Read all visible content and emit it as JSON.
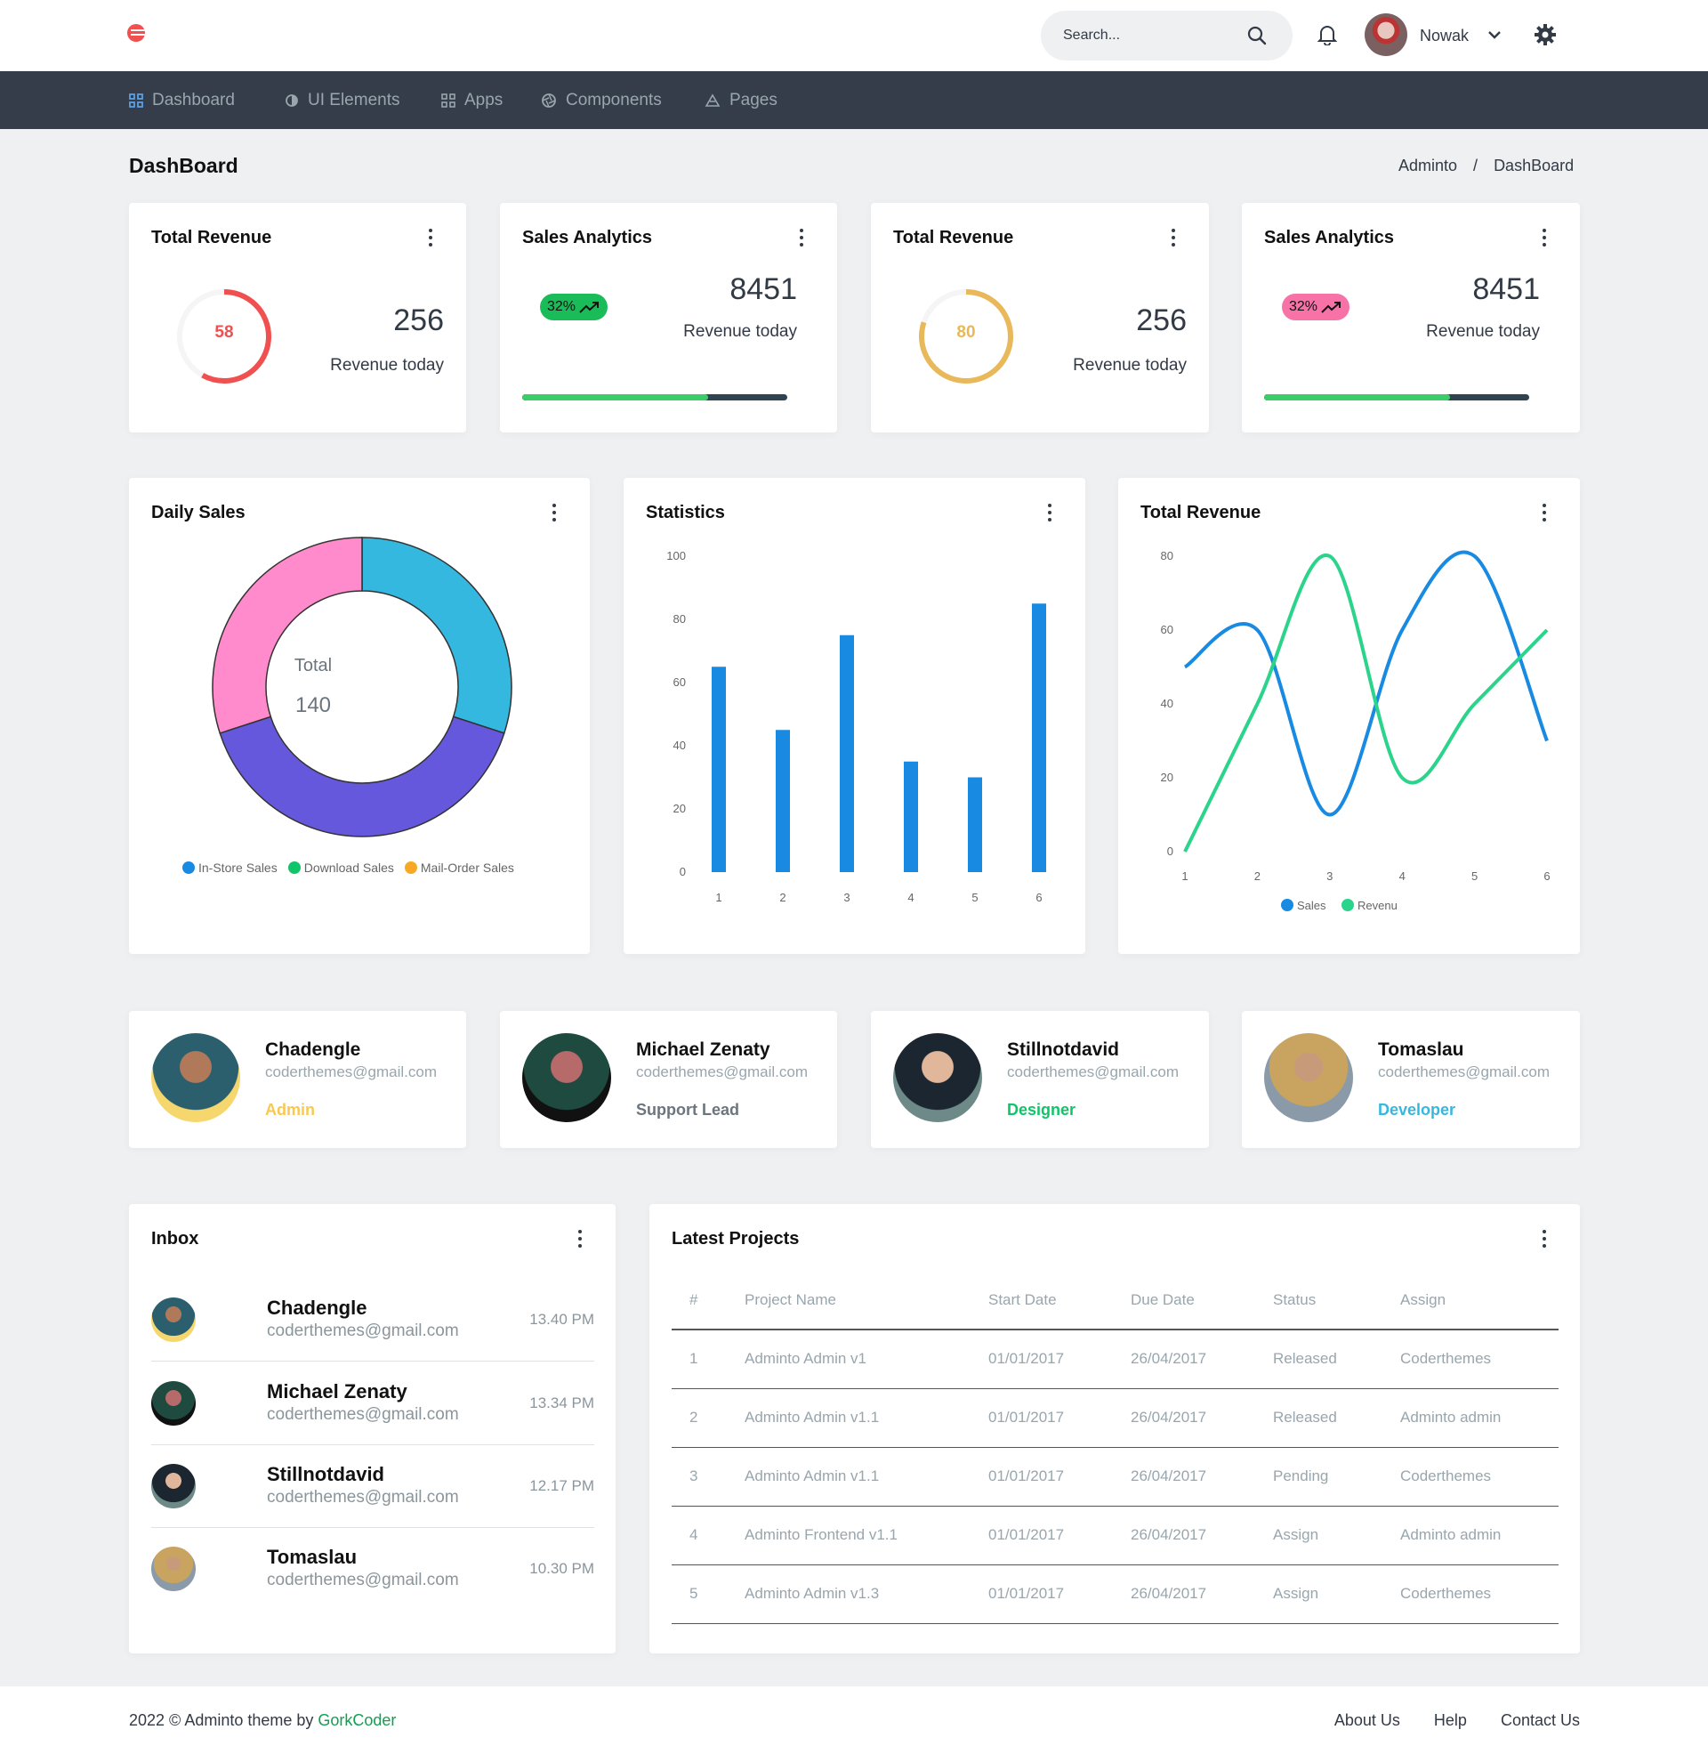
{
  "topbar": {
    "search_placeholder": "Search...",
    "user_name": "Nowak"
  },
  "nav": [
    {
      "label": "Dashboard",
      "icon": "grid-icon"
    },
    {
      "label": "UI Elements",
      "icon": "contrast-icon"
    },
    {
      "label": "Apps",
      "icon": "apps-icon"
    },
    {
      "label": "Components",
      "icon": "aperture-icon"
    },
    {
      "label": "Pages",
      "icon": "pages-icon"
    }
  ],
  "page": {
    "title": "DashBoard",
    "breadcrumb": [
      "Adminto",
      "DashBoard"
    ]
  },
  "stats": [
    {
      "title": "Total Revenue",
      "ring_value": "58",
      "ring_color": "#f05050",
      "ring_fraction": 0.58,
      "value": "256",
      "label": "Revenue today"
    },
    {
      "title": "Sales Analytics",
      "badge": "32%",
      "badge_color": "#1abc5a",
      "value": "8451",
      "label": "Revenue today",
      "progress": 0.7
    },
    {
      "title": "Total Revenue",
      "ring_value": "80",
      "ring_color": "#e9b85a",
      "ring_fraction": 0.8,
      "value": "256",
      "label": "Revenue today"
    },
    {
      "title": "Sales Analytics",
      "badge": "32%",
      "badge_color": "#f672a7",
      "value": "8451",
      "label": "Revenue today",
      "progress": 0.7
    }
  ],
  "daily_sales": {
    "title": "Daily Sales",
    "center_label": "Total",
    "center_value": "140",
    "legend": [
      {
        "name": "In-Store Sales",
        "color": "#188ae2"
      },
      {
        "name": "Download Sales",
        "color": "#10c469"
      },
      {
        "name": "Mail-Order Sales",
        "color": "#f9a825"
      }
    ]
  },
  "statistics": {
    "title": "Statistics"
  },
  "total_revenue_chart": {
    "title": "Total Revenue"
  },
  "chart_data": [
    {
      "type": "pie",
      "donut": true,
      "values": [
        30,
        40,
        30
      ],
      "colors": [
        "#35b8e0",
        "#6658dd",
        "#ff8acc"
      ],
      "center_label": "Total",
      "center_value": "140",
      "legend": [
        "In-Store Sales",
        "Download Sales",
        "Mail-Order Sales"
      ]
    },
    {
      "type": "bar",
      "categories": [
        "1",
        "2",
        "3",
        "4",
        "5",
        "6"
      ],
      "values": [
        65,
        45,
        75,
        35,
        30,
        85
      ],
      "ylim": [
        0,
        100
      ],
      "yticks": [
        "0",
        "20",
        "40",
        "60",
        "80",
        "100"
      ],
      "color": "#188ae2"
    },
    {
      "type": "line",
      "x": [
        "1",
        "2",
        "3",
        "4",
        "5",
        "6"
      ],
      "ylim": [
        0,
        80
      ],
      "yticks": [
        "0",
        "20",
        "40",
        "60",
        "80"
      ],
      "series": [
        {
          "name": "Sales",
          "values": [
            50,
            60,
            10,
            60,
            80,
            30
          ],
          "color": "#188ae2"
        },
        {
          "name": "Revenu",
          "values": [
            0,
            40,
            80,
            20,
            40,
            60
          ],
          "color": "#2bd48a"
        }
      ]
    }
  ],
  "people": [
    {
      "name": "Chadengle",
      "email": "coderthemes@gmail.com",
      "role": "Admin",
      "role_color": "#f9c851"
    },
    {
      "name": "Michael Zenaty",
      "email": "coderthemes@gmail.com",
      "role": "Support Lead",
      "role_color": "#6c757d"
    },
    {
      "name": "Stillnotdavid",
      "email": "coderthemes@gmail.com",
      "role": "Designer",
      "role_color": "#10c469"
    },
    {
      "name": "Tomaslau",
      "email": "coderthemes@gmail.com",
      "role": "Developer",
      "role_color": "#35b8e0"
    }
  ],
  "inbox": {
    "title": "Inbox",
    "items": [
      {
        "name": "Chadengle",
        "email": "coderthemes@gmail.com",
        "time": "13.40 PM"
      },
      {
        "name": "Michael Zenaty",
        "email": "coderthemes@gmail.com",
        "time": "13.34 PM"
      },
      {
        "name": "Stillnotdavid",
        "email": "coderthemes@gmail.com",
        "time": "12.17 PM"
      },
      {
        "name": "Tomaslau",
        "email": "coderthemes@gmail.com",
        "time": "10.30 PM"
      }
    ]
  },
  "projects": {
    "title": "Latest Projects",
    "columns": [
      "#",
      "Project Name",
      "Start Date",
      "Due Date",
      "Status",
      "Assign"
    ],
    "rows": [
      [
        "1",
        "Adminto Admin v1",
        "01/01/2017",
        "26/04/2017",
        "Released",
        "Coderthemes"
      ],
      [
        "2",
        "Adminto Admin v1.1",
        "01/01/2017",
        "26/04/2017",
        "Released",
        "Adminto admin"
      ],
      [
        "3",
        "Adminto Admin v1.1",
        "01/01/2017",
        "26/04/2017",
        "Pending",
        "Coderthemes"
      ],
      [
        "4",
        "Adminto Frontend v1.1",
        "01/01/2017",
        "26/04/2017",
        "Assign",
        "Adminto admin"
      ],
      [
        "5",
        "Adminto Admin v1.3",
        "01/01/2017",
        "26/04/2017",
        "Assign",
        "Coderthemes"
      ]
    ]
  },
  "footer": {
    "copyright": "2022 © Adminto theme by ",
    "author": "GorkCoder",
    "author_color": "#10a050",
    "links": [
      "About Us",
      "Help",
      "Contact Us"
    ]
  }
}
